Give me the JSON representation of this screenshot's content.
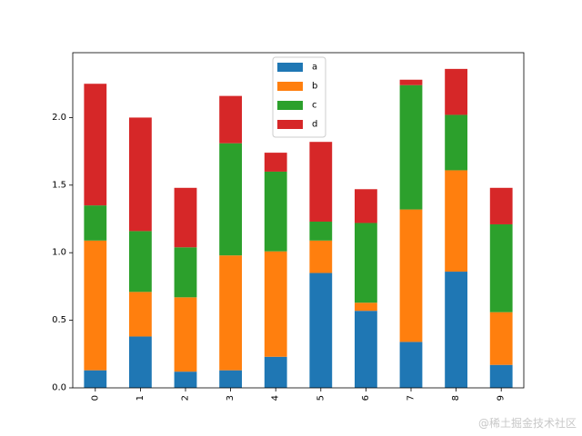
{
  "chart_data": {
    "type": "bar",
    "stacked": true,
    "categories": [
      "0",
      "1",
      "2",
      "3",
      "4",
      "5",
      "6",
      "7",
      "8",
      "9"
    ],
    "series": [
      {
        "name": "a",
        "color": "#1f77b4",
        "values": [
          0.13,
          0.38,
          0.12,
          0.13,
          0.23,
          0.85,
          0.57,
          0.34,
          0.86,
          0.17
        ]
      },
      {
        "name": "b",
        "color": "#ff7f0e",
        "values": [
          0.96,
          0.33,
          0.55,
          0.85,
          0.78,
          0.24,
          0.06,
          0.98,
          0.75,
          0.39
        ]
      },
      {
        "name": "c",
        "color": "#2ca02c",
        "values": [
          0.26,
          0.45,
          0.37,
          0.83,
          0.59,
          0.14,
          0.59,
          0.92,
          0.41,
          0.65
        ]
      },
      {
        "name": "d",
        "color": "#d62728",
        "values": [
          0.9,
          0.84,
          0.44,
          0.35,
          0.14,
          0.59,
          0.25,
          0.04,
          0.34,
          0.27
        ]
      }
    ],
    "yticks": [
      "0.0",
      "0.5",
      "1.0",
      "1.5",
      "2.0"
    ],
    "ylim": [
      0,
      2.48
    ],
    "xlabel": "",
    "ylabel": "",
    "title": "",
    "grid": false,
    "legend": "upper-center",
    "xtick_rotation": 90
  },
  "watermark": "@稀土掘金技术社区"
}
